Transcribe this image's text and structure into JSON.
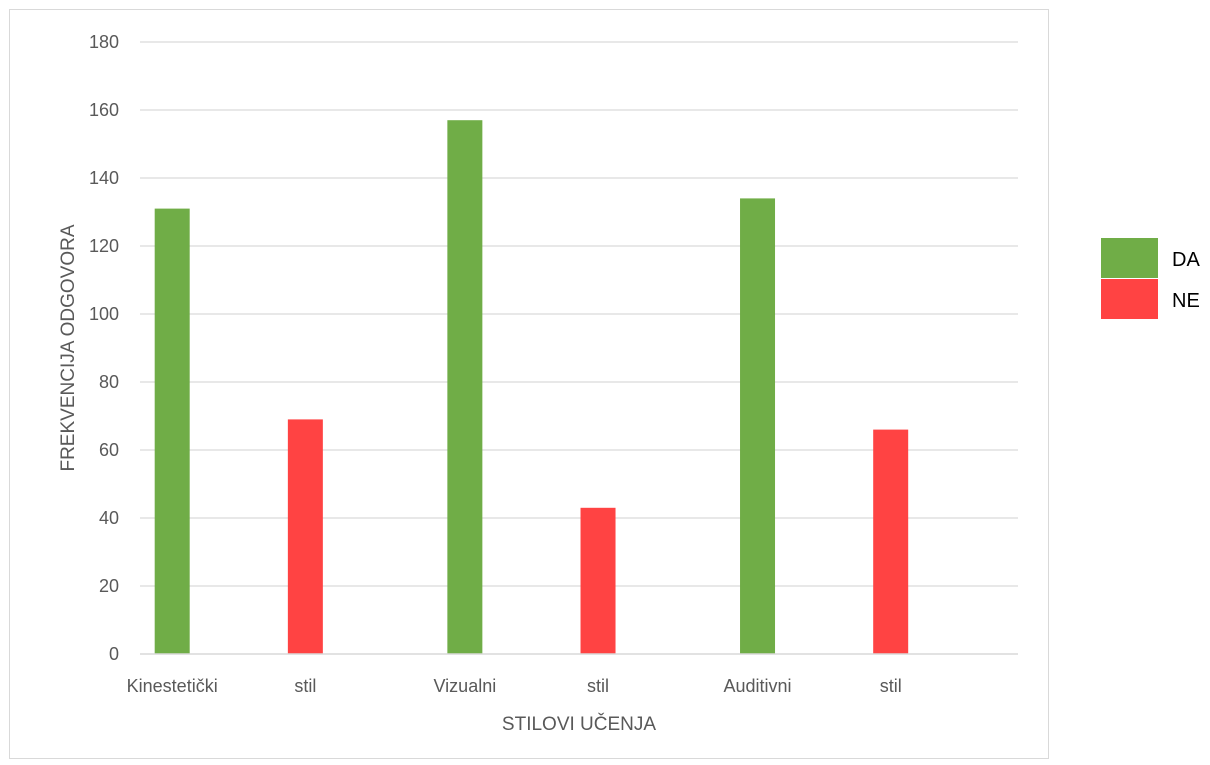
{
  "chart_data": {
    "type": "bar",
    "title": "",
    "xlabel": "STILOVI UČENJA",
    "ylabel": "FREKVENCIJA ODGOVORA",
    "ylim": [
      0,
      180
    ],
    "yticks": [
      0,
      20,
      40,
      60,
      80,
      100,
      120,
      140,
      160,
      180
    ],
    "categories": [
      "Kinestetički stil",
      "Vizualni stil",
      "Auditivni stil"
    ],
    "category_tick_words": [
      [
        "Kinestetički",
        "stil"
      ],
      [
        "Vizualni",
        "stil"
      ],
      [
        "Auditivni",
        "stil"
      ]
    ],
    "series": [
      {
        "name": "DA",
        "color": "#70ad47",
        "values": [
          131,
          157,
          134
        ]
      },
      {
        "name": "NE",
        "color": "#ff4343",
        "values": [
          69,
          43,
          66
        ]
      }
    ],
    "grid": true,
    "legend_position": "right"
  }
}
